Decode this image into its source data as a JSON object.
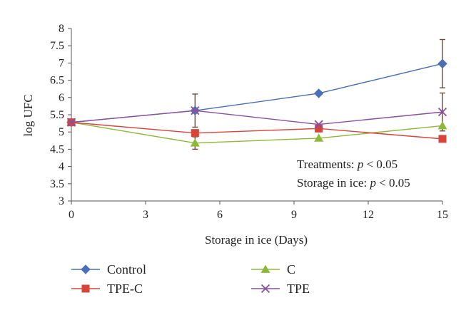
{
  "chart_data": {
    "type": "line",
    "xlabel": "Storage in ice (Days)",
    "ylabel": "log UFC",
    "xlim": [
      0,
      15
    ],
    "ylim": [
      3,
      8
    ],
    "xticks": [
      "0",
      "3",
      "6",
      "9",
      "12",
      "15"
    ],
    "xtick_values": [
      0,
      3,
      6,
      9,
      12,
      15
    ],
    "yticks": [
      "3",
      "3.5",
      "4",
      "4.5",
      "5",
      "5.5",
      "6",
      "6.5",
      "7",
      "7.5",
      "8"
    ],
    "ytick_values": [
      3,
      3.5,
      4,
      4.5,
      5,
      5.5,
      6,
      6.5,
      7,
      7.5,
      8
    ],
    "grid": false,
    "legend_position": "bottom",
    "series": [
      {
        "name": "Control",
        "color": "#4a6fb5",
        "marker": "diamond",
        "x": [
          0,
          5,
          10,
          15
        ],
        "y": [
          5.28,
          5.62,
          6.12,
          6.98
        ],
        "error": [
          0,
          0.48,
          0,
          0.7
        ]
      },
      {
        "name": "C",
        "color": "#8db83a",
        "marker": "triangle",
        "x": [
          0,
          5,
          10,
          15
        ],
        "y": [
          5.28,
          4.68,
          4.82,
          5.18
        ],
        "error": [
          0,
          0.18,
          0,
          0
        ]
      },
      {
        "name": "TPE-C",
        "color": "#d7443a",
        "marker": "square",
        "x": [
          0,
          5,
          10,
          15
        ],
        "y": [
          5.28,
          4.97,
          5.1,
          4.8
        ],
        "error": [
          0,
          0,
          0,
          0
        ]
      },
      {
        "name": "TPE",
        "color": "#8a4f9e",
        "marker": "x",
        "x": [
          0,
          5,
          10,
          15
        ],
        "y": [
          5.28,
          5.62,
          5.22,
          5.58
        ],
        "error": [
          0,
          0,
          0,
          0.55
        ]
      }
    ],
    "annotations": [
      {
        "prefix": "Treatments: ",
        "var": "p",
        "suffix": " < 0.05"
      },
      {
        "prefix": "Storage in ice: ",
        "var": "p",
        "suffix": " < 0.05"
      }
    ]
  }
}
